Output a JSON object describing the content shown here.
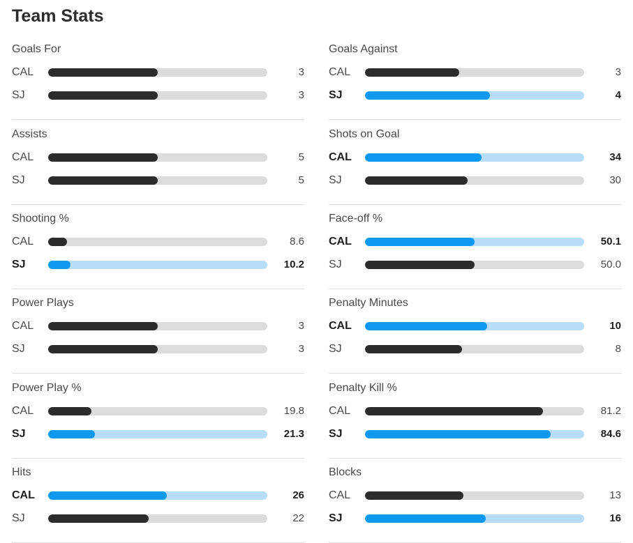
{
  "title": "Team Stats",
  "colors": {
    "leader_fill": "#0d99f2",
    "leader_track": "#b7ddf8",
    "fill": "#2b2c2d",
    "track": "#dcdcdc"
  },
  "left_column": [
    {
      "label": "Goals For",
      "rows": [
        {
          "team": "CAL",
          "value": "3",
          "fill": 0.5,
          "lead": false
        },
        {
          "team": "SJ",
          "value": "3",
          "fill": 0.5,
          "lead": false
        }
      ]
    },
    {
      "label": "Assists",
      "rows": [
        {
          "team": "CAL",
          "value": "5",
          "fill": 0.5,
          "lead": false
        },
        {
          "team": "SJ",
          "value": "5",
          "fill": 0.5,
          "lead": false
        }
      ]
    },
    {
      "label": "Shooting %",
      "rows": [
        {
          "team": "CAL",
          "value": "8.6",
          "fill": 0.086,
          "lead": false
        },
        {
          "team": "SJ",
          "value": "10.2",
          "fill": 0.102,
          "lead": true
        }
      ]
    },
    {
      "label": "Power Plays",
      "rows": [
        {
          "team": "CAL",
          "value": "3",
          "fill": 0.5,
          "lead": false
        },
        {
          "team": "SJ",
          "value": "3",
          "fill": 0.5,
          "lead": false
        }
      ]
    },
    {
      "label": "Power Play %",
      "rows": [
        {
          "team": "CAL",
          "value": "19.8",
          "fill": 0.198,
          "lead": false
        },
        {
          "team": "SJ",
          "value": "21.3",
          "fill": 0.213,
          "lead": true
        }
      ]
    },
    {
      "label": "Hits",
      "rows": [
        {
          "team": "CAL",
          "value": "26",
          "fill": 0.542,
          "lead": true
        },
        {
          "team": "SJ",
          "value": "22",
          "fill": 0.458,
          "lead": false
        }
      ]
    }
  ],
  "right_column": [
    {
      "label": "Goals Against",
      "rows": [
        {
          "team": "CAL",
          "value": "3",
          "fill": 0.429,
          "lead": false
        },
        {
          "team": "SJ",
          "value": "4",
          "fill": 0.571,
          "lead": true
        }
      ]
    },
    {
      "label": "Shots on Goal",
      "rows": [
        {
          "team": "CAL",
          "value": "34",
          "fill": 0.531,
          "lead": true
        },
        {
          "team": "SJ",
          "value": "30",
          "fill": 0.469,
          "lead": false
        }
      ]
    },
    {
      "label": "Face-off %",
      "rows": [
        {
          "team": "CAL",
          "value": "50.1",
          "fill": 0.501,
          "lead": true
        },
        {
          "team": "SJ",
          "value": "50.0",
          "fill": 0.5,
          "lead": false
        }
      ]
    },
    {
      "label": "Penalty Minutes",
      "rows": [
        {
          "team": "CAL",
          "value": "10",
          "fill": 0.556,
          "lead": true
        },
        {
          "team": "SJ",
          "value": "8",
          "fill": 0.444,
          "lead": false
        }
      ]
    },
    {
      "label": "Penalty Kill %",
      "rows": [
        {
          "team": "CAL",
          "value": "81.2",
          "fill": 0.812,
          "lead": false
        },
        {
          "team": "SJ",
          "value": "84.6",
          "fill": 0.846,
          "lead": true
        }
      ]
    },
    {
      "label": "Blocks",
      "rows": [
        {
          "team": "CAL",
          "value": "13",
          "fill": 0.448,
          "lead": false
        },
        {
          "team": "SJ",
          "value": "16",
          "fill": 0.552,
          "lead": true
        }
      ]
    }
  ]
}
